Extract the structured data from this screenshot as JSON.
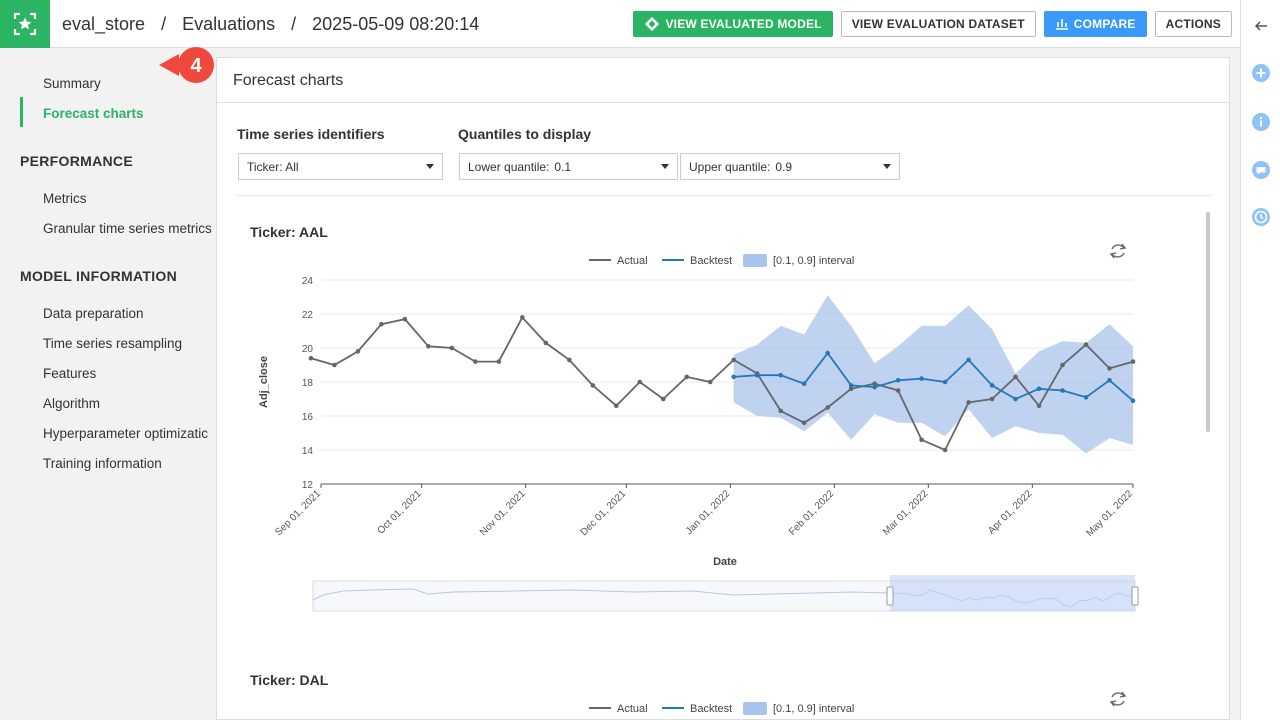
{
  "header": {
    "project": "eval_store",
    "section": "Evaluations",
    "evaluation": "2025-05-09 08:20:14",
    "sep": "/",
    "buttons": {
      "view_model": "VIEW EVALUATED MODEL",
      "view_dataset": "VIEW EVALUATION DATASET",
      "compare": "COMPARE",
      "actions": "ACTIONS"
    }
  },
  "sidebar": {
    "summary": "Summary",
    "forecast_charts": "Forecast charts",
    "performance_heading": "PERFORMANCE",
    "metrics": "Metrics",
    "granular": "Granular time series metrics",
    "model_info_heading": "MODEL INFORMATION",
    "data_prep": "Data preparation",
    "ts_resampling": "Time series resampling",
    "features": "Features",
    "algorithm": "Algorithm",
    "hyperparam": "Hyperparameter optimizatic",
    "training": "Training information"
  },
  "callout_number": "4",
  "panel": {
    "title": "Forecast charts",
    "ts_label": "Time series identifiers",
    "q_label": "Quantiles to display",
    "ticker_select": "Ticker: All",
    "lower_q_label": "Lower quantile:",
    "lower_q_value": "0.1",
    "upper_q_label": "Upper quantile:",
    "upper_q_value": "0.9"
  },
  "icons": {
    "logo": "star-icon",
    "view_model": "model-icon",
    "compare": "compare-icon",
    "collapse": "arrow-left-icon",
    "rail": [
      "plus-circle-icon",
      "info-icon",
      "chat-icon",
      "history-icon"
    ]
  },
  "colors": {
    "brand_green": "#2ab463",
    "accent_blue": "#3b99fc",
    "actual_line": "#666666",
    "backtest_line": "#2677b8",
    "interval_fill": "#a9c4ec",
    "callout": "#f0483c"
  },
  "chart_data": [
    {
      "type": "line",
      "title": "Ticker: AAL",
      "xlabel": "Date",
      "ylabel": "Adj_close",
      "ylim": [
        12,
        24
      ],
      "yticks": [
        "12",
        "14",
        "16",
        "18",
        "20",
        "22",
        "24"
      ],
      "xticks": [
        "Sep 01, 2021",
        "Oct 01, 2021",
        "Nov 01, 2021",
        "Dec 01, 2021",
        "Jan 01, 2022",
        "Feb 01, 2022",
        "Mar 01, 2022",
        "Apr 01, 2022",
        "May 01, 2022"
      ],
      "grid": true,
      "legend": "top-center",
      "legend_entries": [
        "Actual",
        "Backtest",
        "[0.1, 0.9] interval"
      ],
      "series": [
        {
          "name": "Actual",
          "x": [
            "2021-08-29",
            "2021-09-05",
            "2021-09-12",
            "2021-09-19",
            "2021-09-26",
            "2021-10-03",
            "2021-10-10",
            "2021-10-17",
            "2021-10-24",
            "2021-10-31",
            "2021-11-07",
            "2021-11-14",
            "2021-11-21",
            "2021-11-28",
            "2021-12-05",
            "2021-12-12",
            "2021-12-19",
            "2021-12-26",
            "2022-01-02",
            "2022-01-09",
            "2022-01-16",
            "2022-01-23",
            "2022-01-30",
            "2022-02-06",
            "2022-02-13",
            "2022-02-20",
            "2022-02-27",
            "2022-03-06",
            "2022-03-13",
            "2022-03-20",
            "2022-03-27",
            "2022-04-03",
            "2022-04-10",
            "2022-04-17",
            "2022-04-24",
            "2022-05-01"
          ],
          "y": [
            19.4,
            19.0,
            19.8,
            21.4,
            21.7,
            20.1,
            20.0,
            19.2,
            19.2,
            21.8,
            20.3,
            19.3,
            17.8,
            16.6,
            18.0,
            17.0,
            18.3,
            18.0,
            19.3,
            18.5,
            16.3,
            15.6,
            16.5,
            17.6,
            17.9,
            17.5,
            14.6,
            14.0,
            16.8,
            17.0,
            18.3,
            16.6,
            19.0,
            20.2,
            18.8,
            19.2
          ]
        },
        {
          "name": "Backtest",
          "x": [
            "2022-01-02",
            "2022-01-09",
            "2022-01-16",
            "2022-01-23",
            "2022-01-30",
            "2022-02-06",
            "2022-02-13",
            "2022-02-20",
            "2022-02-27",
            "2022-03-06",
            "2022-03-13",
            "2022-03-20",
            "2022-03-27",
            "2022-04-03",
            "2022-04-10",
            "2022-04-17",
            "2022-04-24",
            "2022-05-01"
          ],
          "y": [
            18.3,
            18.4,
            18.4,
            17.9,
            19.7,
            17.8,
            17.7,
            18.1,
            18.2,
            18.0,
            19.3,
            17.8,
            17.0,
            17.6,
            17.5,
            17.1,
            18.1,
            16.9
          ],
          "lower": [
            16.8,
            16.0,
            15.9,
            15.1,
            16.2,
            14.6,
            16.1,
            15.6,
            15.6,
            14.8,
            16.4,
            14.7,
            15.4,
            15.0,
            14.9,
            13.8,
            14.7,
            14.3
          ],
          "upper": [
            19.6,
            20.2,
            21.3,
            20.8,
            23.1,
            21.3,
            19.1,
            20.1,
            21.3,
            21.3,
            22.5,
            21.1,
            18.5,
            19.8,
            20.4,
            20.3,
            21.4,
            20.1
          ]
        }
      ]
    },
    {
      "type": "line",
      "title": "Ticker: DAL",
      "legend": "top-center",
      "legend_entries": [
        "Actual",
        "Backtest",
        "[0.1, 0.9] interval"
      ]
    }
  ]
}
